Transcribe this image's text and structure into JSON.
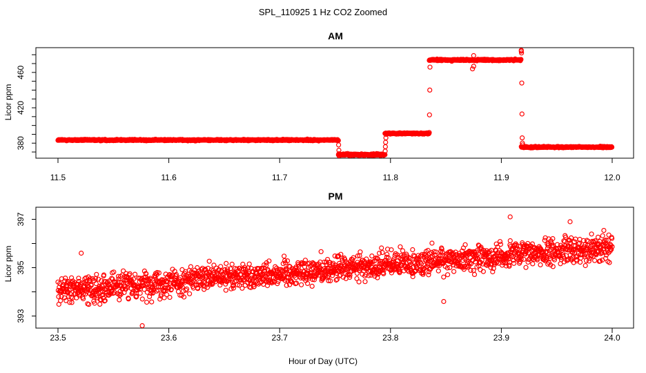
{
  "chart_data": {
    "title": "SPL_110925  1 Hz CO2 Zoomed",
    "xlabel": "Hour of Day (UTC)",
    "point_color": "#ff0000",
    "panels": [
      {
        "id": "am",
        "type": "scatter",
        "title": "AM",
        "ylabel": "Licor ppm",
        "xlim": [
          11.5,
          12.0
        ],
        "ylim": [
          363,
          488
        ],
        "xticks": [
          "11.5",
          "11.6",
          "11.7",
          "11.8",
          "11.9",
          "12.0"
        ],
        "xtick_values": [
          11.5,
          11.6,
          11.7,
          11.8,
          11.9,
          12.0
        ],
        "yticks": [
          "380",
          "420",
          "460"
        ],
        "ytick_values": [
          380,
          420,
          460
        ],
        "segments": [
          {
            "x_start": 11.5,
            "x_end": 11.753,
            "y": 383.5,
            "noise": 0.6
          },
          {
            "x_start": 11.753,
            "x_end": 11.795,
            "y": 367,
            "noise": 0.8
          },
          {
            "x_start": 11.795,
            "x_end": 11.835,
            "y": 391,
            "noise": 0.6
          },
          {
            "x_start": 11.835,
            "x_end": 11.918,
            "y": 474,
            "noise": 0.7
          },
          {
            "x_start": 11.918,
            "x_end": 12.0,
            "y": 375.5,
            "noise": 0.6
          }
        ],
        "transitions": [
          {
            "x": 11.753,
            "y": [
              383,
              378,
              372,
              368
            ]
          },
          {
            "x": 11.795,
            "y": [
              367,
              371,
              376,
              381,
              386,
              390
            ]
          },
          {
            "x": 11.835,
            "y": [
              392,
              412,
              440,
              466
            ]
          },
          {
            "x": 11.918,
            "y": [
              484,
              482,
              448,
              413,
              386,
              380,
              378
            ]
          }
        ],
        "outliers": [
          {
            "x": 11.875,
            "y": 479
          },
          {
            "x": 11.875,
            "y": 467
          },
          {
            "x": 11.874,
            "y": 464
          },
          {
            "x": 11.918,
            "y": 487
          },
          {
            "x": 11.918,
            "y": 485
          }
        ]
      },
      {
        "id": "pm",
        "type": "scatter",
        "title": "PM",
        "ylabel": "Licor ppm",
        "xlim": [
          23.5,
          24.0
        ],
        "ylim": [
          392.5,
          397.5
        ],
        "xticks": [
          "23.5",
          "23.6",
          "23.7",
          "23.8",
          "23.9",
          "24.0"
        ],
        "xtick_values": [
          23.5,
          23.6,
          23.7,
          23.8,
          23.9,
          24.0
        ],
        "yticks": [
          "393",
          "395",
          "397"
        ],
        "ytick_values": [
          393,
          395,
          397
        ],
        "trend": {
          "y_start": 394.05,
          "y_end": 395.85,
          "noise": 0.45
        },
        "n_points": 1800,
        "outliers": [
          {
            "x": 23.908,
            "y": 397.1
          },
          {
            "x": 23.962,
            "y": 396.9
          },
          {
            "x": 23.576,
            "y": 392.6
          },
          {
            "x": 23.521,
            "y": 395.6
          },
          {
            "x": 23.848,
            "y": 393.6
          }
        ]
      }
    ]
  }
}
